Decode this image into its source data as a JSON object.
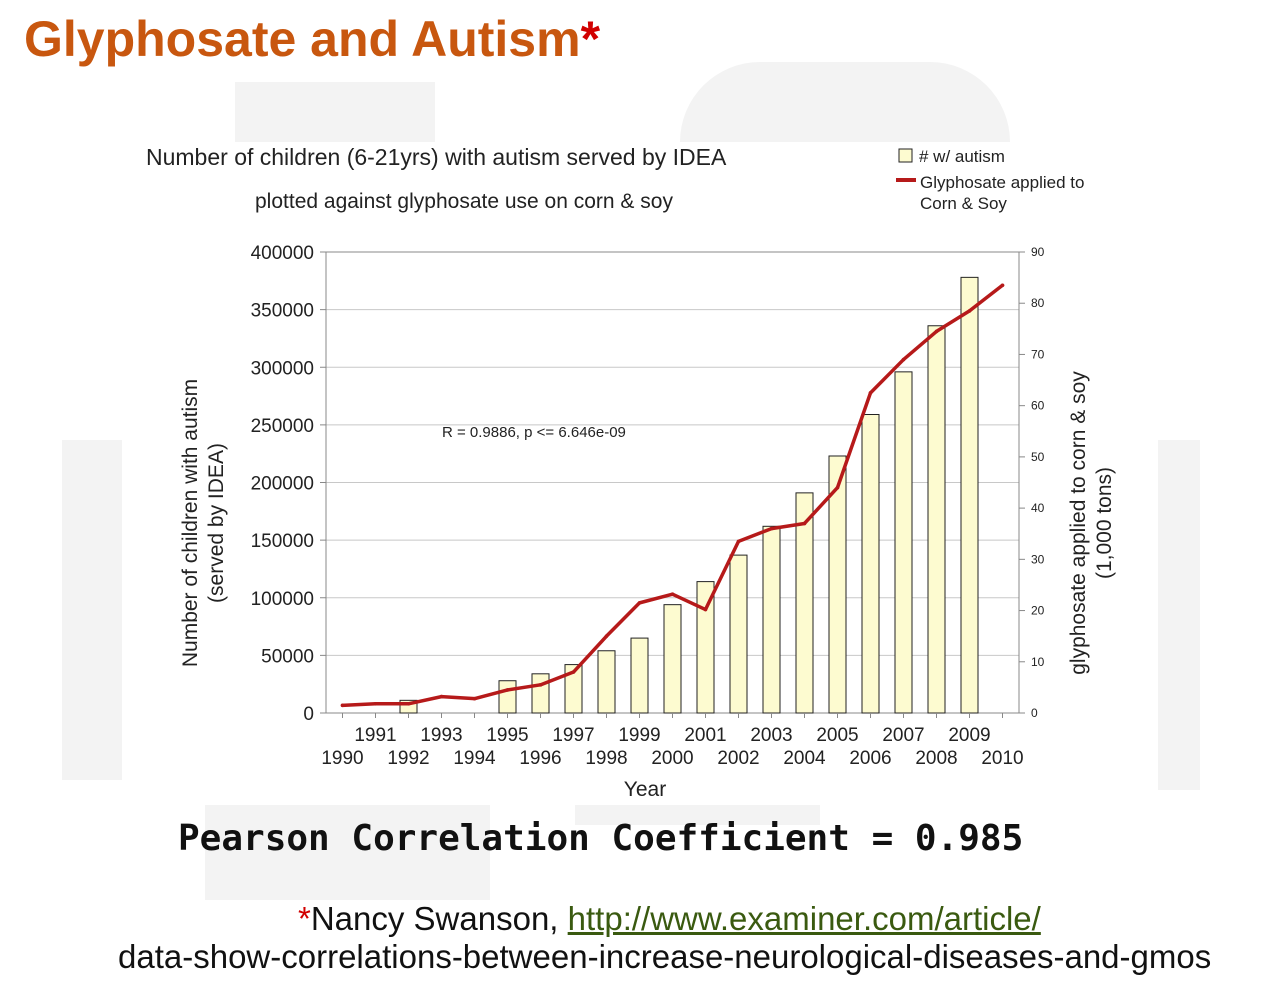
{
  "slide": {
    "title": "Glyphosate and Autism",
    "title_mark": "*",
    "pearson_text": "Pearson Correlation Coefficient = 0.985",
    "citation": {
      "mark": "*",
      "author": "Nancy Swanson, ",
      "link": "http://www.examiner.com/article/",
      "line2": "data-show-correlations-between-increase-neurological-diseases-and-gmos"
    }
  },
  "colors": {
    "title": "#c8570f",
    "bar_fill": "#fdfbd0",
    "line": "#b61a1a",
    "grid": "#c8c8c8"
  },
  "chart_data": {
    "type": "bar",
    "title": "Number of children (6-21yrs) with autism served by IDEA",
    "subtitle": "plotted against glyphosate use on corn & soy",
    "annotation": "R = 0.9886, p <= 6.646e-09",
    "xlabel": "Year",
    "ylabel": [
      "Number of children with autism",
      "(served by IDEA)"
    ],
    "y2label": [
      "glyphosate applied to corn & soy",
      "(1,000 tons)"
    ],
    "categories": [
      "1990",
      "1991",
      "1992",
      "1993",
      "1994",
      "1995",
      "1996",
      "1997",
      "1998",
      "1999",
      "2000",
      "2001",
      "2002",
      "2003",
      "2004",
      "2005",
      "2006",
      "2007",
      "2008",
      "2009",
      "2010"
    ],
    "ylim": [
      0,
      400000
    ],
    "y_ticks": [
      "0",
      "50000",
      "100000",
      "150000",
      "200000",
      "250000",
      "300000",
      "350000",
      "400000"
    ],
    "y2lim": [
      0,
      90
    ],
    "y2_ticks": [
      "0",
      "10",
      "20",
      "30",
      "40",
      "50",
      "60",
      "70",
      "80",
      "90"
    ],
    "legend_position": "top-right",
    "grid": true,
    "series": [
      {
        "name": "# w/ autism",
        "kind": "bar",
        "axis": "left",
        "values": [
          null,
          null,
          11000,
          null,
          null,
          28000,
          34000,
          42000,
          54000,
          65000,
          94000,
          114000,
          137000,
          162000,
          191000,
          223000,
          259000,
          296000,
          336000,
          378000,
          null
        ]
      },
      {
        "name": "Glyphosate applied to Corn & Soy",
        "kind": "line",
        "axis": "right",
        "values": [
          1.5,
          1.8,
          1.8,
          3.2,
          2.8,
          4.5,
          5.5,
          8.0,
          15.0,
          21.5,
          23.2,
          20.2,
          33.5,
          36.0,
          37.0,
          44.0,
          62.5,
          69.0,
          74.5,
          78.5,
          83.5
        ]
      }
    ]
  }
}
